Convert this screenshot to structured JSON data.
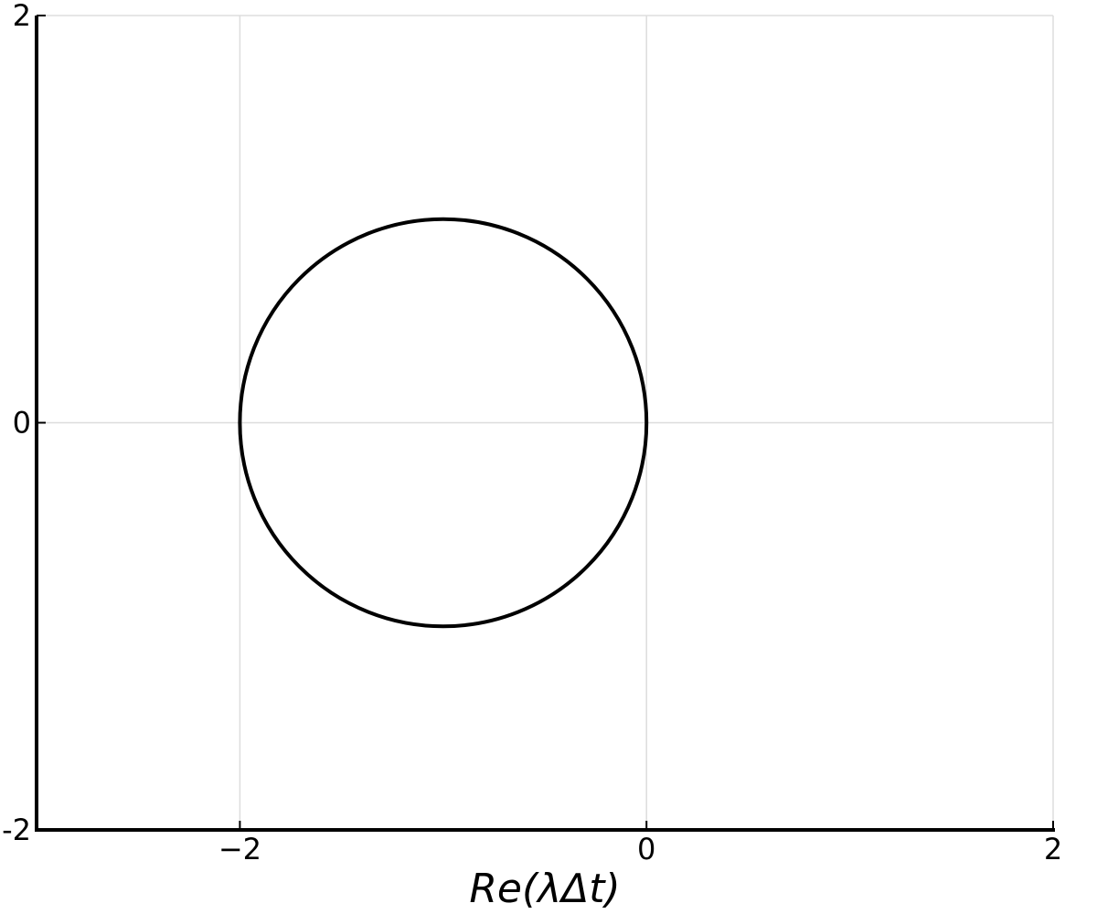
{
  "chart_data": {
    "type": "line",
    "title": "",
    "xlabel": "Re(λΔt)",
    "ylabel": "",
    "xlim": [
      -3,
      2
    ],
    "ylim": [
      -2,
      2
    ],
    "x_ticks": [
      -2,
      0,
      2
    ],
    "x_tick_labels": [
      "−2",
      "0",
      "2"
    ],
    "y_ticks": [
      -2,
      0,
      2
    ],
    "y_tick_labels": [
      "-2",
      "0",
      "2"
    ],
    "grid": true,
    "legend": "none",
    "series": [
      {
        "shape": "circle",
        "center": [
          -1,
          0
        ],
        "radius": 1,
        "color": "#000000"
      }
    ]
  }
}
